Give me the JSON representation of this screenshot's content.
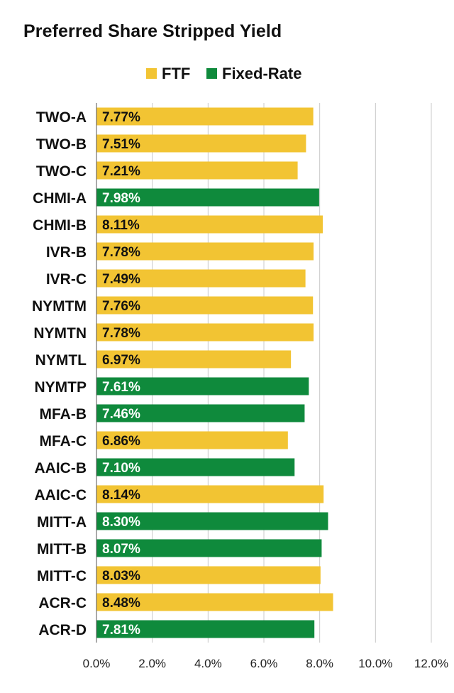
{
  "chart_data": {
    "type": "bar",
    "orientation": "horizontal",
    "title": "Preferred Share Stripped Yield",
    "legend": [
      {
        "name": "FTF",
        "color": "#f2c433"
      },
      {
        "name": "Fixed-Rate",
        "color": "#0f8a3c"
      }
    ],
    "categories": [
      "TWO-A",
      "TWO-B",
      "TWO-C",
      "CHMI-A",
      "CHMI-B",
      "IVR-B",
      "IVR-C",
      "NYMTM",
      "NYMTN",
      "NYMTL",
      "NYMTP",
      "MFA-B",
      "MFA-C",
      "AAIC-B",
      "AAIC-C",
      "MITT-A",
      "MITT-B",
      "MITT-C",
      "ACR-C",
      "ACR-D"
    ],
    "values": [
      7.77,
      7.51,
      7.21,
      7.98,
      8.11,
      7.78,
      7.49,
      7.76,
      7.78,
      6.97,
      7.61,
      7.46,
      6.86,
      7.1,
      8.14,
      8.3,
      8.07,
      8.03,
      8.48,
      7.81
    ],
    "labels": [
      "7.77%",
      "7.51%",
      "7.21%",
      "7.98%",
      "8.11%",
      "7.78%",
      "7.49%",
      "7.76%",
      "7.78%",
      "6.97%",
      "7.61%",
      "7.46%",
      "6.86%",
      "7.10%",
      "8.14%",
      "8.30%",
      "8.07%",
      "8.03%",
      "8.48%",
      "7.81%"
    ],
    "series_type": [
      "FTF",
      "FTF",
      "FTF",
      "Fixed-Rate",
      "FTF",
      "FTF",
      "FTF",
      "FTF",
      "FTF",
      "FTF",
      "Fixed-Rate",
      "Fixed-Rate",
      "FTF",
      "Fixed-Rate",
      "FTF",
      "Fixed-Rate",
      "Fixed-Rate",
      "FTF",
      "FTF",
      "Fixed-Rate"
    ],
    "xlim": [
      0,
      12
    ],
    "xticks": [
      "0.0%",
      "2.0%",
      "4.0%",
      "6.0%",
      "8.0%",
      "10.0%",
      "12.0%"
    ],
    "xtick_values": [
      0,
      2,
      4,
      6,
      8,
      10,
      12
    ],
    "grid": "vertical",
    "legend_position": "top"
  }
}
